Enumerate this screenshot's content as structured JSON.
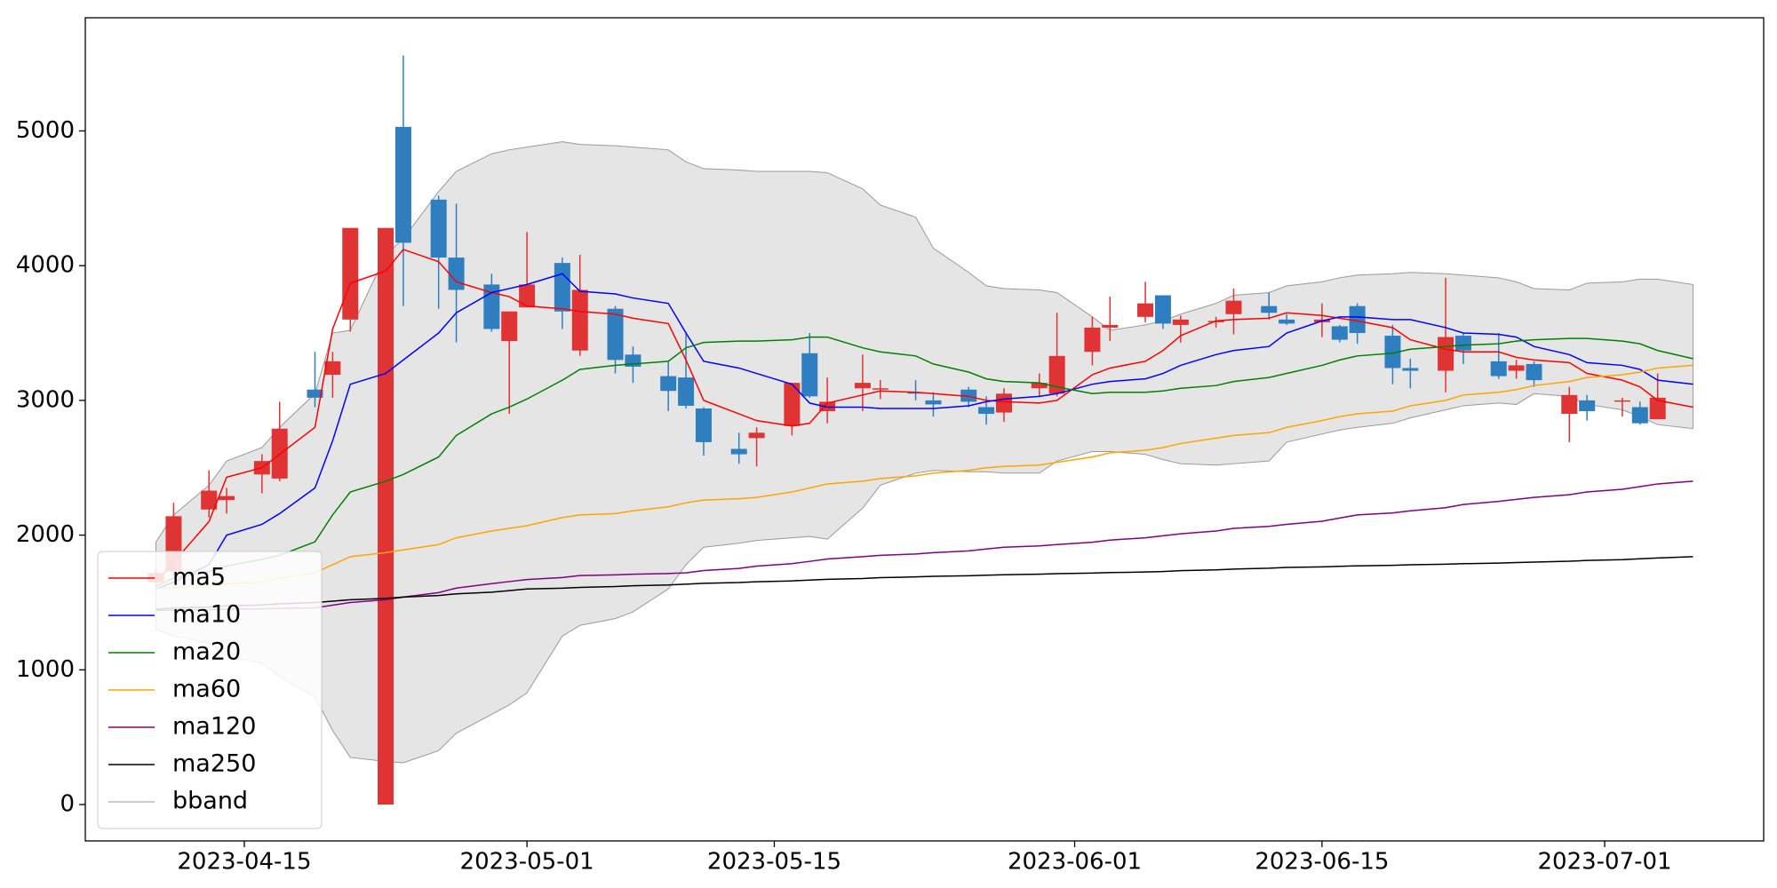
{
  "chart_data": {
    "type": "candlestick",
    "x": [
      "2023-04-10",
      "2023-04-11",
      "2023-04-13",
      "2023-04-14",
      "2023-04-16",
      "2023-04-17",
      "2023-04-19",
      "2023-04-20",
      "2023-04-21",
      "2023-04-23",
      "2023-04-24",
      "2023-04-26",
      "2023-04-27",
      "2023-04-29",
      "2023-04-30",
      "2023-05-01",
      "2023-05-03",
      "2023-05-04",
      "2023-05-06",
      "2023-05-07",
      "2023-05-09",
      "2023-05-10",
      "2023-05-11",
      "2023-05-13",
      "2023-05-14",
      "2023-05-16",
      "2023-05-17",
      "2023-05-18",
      "2023-05-20",
      "2023-05-21",
      "2023-05-23",
      "2023-05-24",
      "2023-05-26",
      "2023-05-27",
      "2023-05-28",
      "2023-05-30",
      "2023-05-31",
      "2023-06-02",
      "2023-06-03",
      "2023-06-05",
      "2023-06-06",
      "2023-06-07",
      "2023-06-09",
      "2023-06-10",
      "2023-06-12",
      "2023-06-13",
      "2023-06-15",
      "2023-06-16",
      "2023-06-17",
      "2023-06-19",
      "2023-06-20",
      "2023-06-22",
      "2023-06-23",
      "2023-06-25",
      "2023-06-26",
      "2023-06-27",
      "2023-06-29",
      "2023-06-30",
      "2023-07-02",
      "2023-07-03",
      "2023-07-04",
      "2023-07-06"
    ],
    "open": [
      1650,
      1730,
      2190,
      2260,
      2450,
      2420,
      3080,
      3190,
      3600,
      0,
      5030,
      4490,
      4060,
      3860,
      3440,
      3690,
      4020,
      3370,
      3680,
      3340,
      3180,
      3170,
      2940,
      2640,
      2720,
      2810,
      3350,
      2920,
      3090,
      3080,
      3060,
      3000,
      3080,
      2950,
      2910,
      3090,
      3050,
      3360,
      3540,
      3620,
      3780,
      3560,
      3580,
      3640,
      3700,
      3600,
      3580,
      3550,
      3700,
      3480,
      3240,
      3220,
      3480,
      3290,
      3220,
      3270,
      2900,
      3000,
      2990,
      2950,
      2860,
      null
    ],
    "high": [
      1750,
      2240,
      2480,
      2350,
      2600,
      2990,
      3360,
      3360,
      4280,
      4280,
      5560,
      4520,
      4460,
      3940,
      3660,
      4250,
      4060,
      4080,
      3700,
      3400,
      3290,
      3500,
      2950,
      2760,
      2800,
      3130,
      3500,
      3170,
      3340,
      3150,
      3150,
      3060,
      3100,
      3030,
      3090,
      3200,
      3650,
      3620,
      3770,
      3880,
      3780,
      3630,
      3620,
      3830,
      3800,
      3640,
      3720,
      3560,
      3720,
      3560,
      3310,
      3910,
      3500,
      3500,
      3300,
      3290,
      3100,
      3040,
      3020,
      2990,
      3200,
      null
    ],
    "low": [
      1600,
      1700,
      2130,
      2160,
      2310,
      2400,
      2950,
      3020,
      3510,
      0,
      3700,
      3680,
      3430,
      3510,
      2900,
      3690,
      3530,
      3330,
      3200,
      3130,
      2920,
      2940,
      2590,
      2530,
      2510,
      2740,
      3020,
      2830,
      2920,
      3010,
      3000,
      2880,
      2950,
      2820,
      2840,
      3030,
      3030,
      3260,
      3440,
      3580,
      3530,
      3430,
      3540,
      3490,
      3600,
      3560,
      3470,
      3430,
      3420,
      3120,
      3090,
      3060,
      3270,
      3160,
      3160,
      3100,
      2690,
      2850,
      2880,
      2820,
      2860,
      null
    ],
    "close": [
      1720,
      2140,
      2330,
      2290,
      2550,
      2790,
      3020,
      3290,
      4280,
      4280,
      4170,
      4060,
      3820,
      3530,
      3660,
      3860,
      3660,
      3820,
      3300,
      3250,
      3070,
      2960,
      2690,
      2600,
      2760,
      3130,
      3030,
      2990,
      3130,
      3090,
      3050,
      2970,
      2990,
      2900,
      3050,
      3130,
      3330,
      3540,
      3560,
      3720,
      3570,
      3600,
      3590,
      3740,
      3650,
      3570,
      3600,
      3450,
      3500,
      3240,
      3220,
      3470,
      3370,
      3180,
      3260,
      3150,
      3040,
      2920,
      3000,
      2830,
      3020,
      null
    ],
    "up_color": "#e03333",
    "down_color": "#2f7fc0",
    "series": [
      {
        "name": "ma5",
        "color": "#ff0000",
        "values": [
          1650,
          1800,
          2100,
          2430,
          2500,
          2600,
          2800,
          3530,
          3870,
          3960,
          4120,
          4030,
          3880,
          3800,
          3770,
          3700,
          3680,
          3660,
          3640,
          3610,
          3570,
          3300,
          3000,
          2900,
          2850,
          2810,
          2830,
          2980,
          3040,
          3070,
          3060,
          3050,
          3030,
          3000,
          2990,
          2980,
          3000,
          3190,
          3240,
          3290,
          3370,
          3480,
          3590,
          3600,
          3610,
          3650,
          3630,
          3610,
          3590,
          3540,
          3450,
          3380,
          3360,
          3360,
          3320,
          3300,
          3280,
          3200,
          3150,
          3100,
          3000,
          2950
        ]
      },
      {
        "name": "ma10",
        "color": "#0000ff",
        "values": [
          1600,
          1650,
          1780,
          2000,
          2080,
          2160,
          2350,
          2700,
          3120,
          3200,
          3300,
          3500,
          3650,
          3800,
          3830,
          3860,
          3940,
          3810,
          3790,
          3760,
          3720,
          3500,
          3290,
          3240,
          3200,
          3120,
          2980,
          2950,
          2950,
          2940,
          2940,
          2940,
          2960,
          2990,
          3010,
          3030,
          3050,
          3120,
          3140,
          3160,
          3200,
          3260,
          3340,
          3370,
          3400,
          3500,
          3590,
          3620,
          3620,
          3600,
          3600,
          3540,
          3500,
          3490,
          3470,
          3400,
          3340,
          3280,
          3260,
          3230,
          3150,
          3120
        ]
      },
      {
        "name": "ma20",
        "color": "#008000",
        "values": [
          1620,
          1680,
          1730,
          1770,
          1820,
          1850,
          1950,
          2150,
          2320,
          2400,
          2450,
          2580,
          2740,
          2900,
          2950,
          3010,
          3150,
          3230,
          3260,
          3270,
          3290,
          3390,
          3430,
          3440,
          3440,
          3450,
          3470,
          3470,
          3390,
          3360,
          3330,
          3270,
          3210,
          3160,
          3140,
          3130,
          3100,
          3050,
          3060,
          3060,
          3070,
          3090,
          3110,
          3140,
          3170,
          3200,
          3260,
          3300,
          3330,
          3350,
          3380,
          3400,
          3410,
          3420,
          3440,
          3450,
          3460,
          3460,
          3440,
          3420,
          3370,
          3310
        ]
      },
      {
        "name": "ma60",
        "color": "#ffa500",
        "values": [
          1600,
          1610,
          1620,
          1640,
          1650,
          1680,
          1720,
          1780,
          1840,
          1870,
          1890,
          1930,
          1980,
          2030,
          2050,
          2070,
          2130,
          2150,
          2160,
          2180,
          2210,
          2240,
          2260,
          2270,
          2280,
          2320,
          2350,
          2380,
          2400,
          2420,
          2440,
          2460,
          2480,
          2500,
          2510,
          2520,
          2540,
          2580,
          2610,
          2630,
          2650,
          2680,
          2720,
          2740,
          2760,
          2800,
          2850,
          2880,
          2900,
          2920,
          2960,
          3000,
          3040,
          3060,
          3080,
          3110,
          3140,
          3170,
          3190,
          3210,
          3240,
          3260
        ]
      },
      {
        "name": "ma120",
        "color": "#800080",
        "values": [
          1440,
          1443,
          1447,
          1450,
          1453,
          1457,
          1460,
          1480,
          1500,
          1520,
          1540,
          1573,
          1607,
          1640,
          1655,
          1670,
          1685,
          1700,
          1705,
          1710,
          1715,
          1720,
          1737,
          1753,
          1770,
          1788,
          1805,
          1823,
          1840,
          1850,
          1860,
          1870,
          1883,
          1897,
          1910,
          1920,
          1930,
          1947,
          1963,
          1980,
          1995,
          2010,
          2030,
          2050,
          2065,
          2080,
          2103,
          2127,
          2150,
          2165,
          2180,
          2203,
          2227,
          2250,
          2265,
          2280,
          2300,
          2320,
          2340,
          2360,
          2380,
          2400
        ]
      },
      {
        "name": "ma250",
        "color": "#000000",
        "values": [
          1450,
          1458,
          1466,
          1474,
          1482,
          1490,
          1500,
          1510,
          1520,
          1530,
          1540,
          1552,
          1564,
          1576,
          1588,
          1600,
          1606,
          1612,
          1618,
          1624,
          1630,
          1636,
          1642,
          1648,
          1654,
          1660,
          1666,
          1672,
          1678,
          1684,
          1690,
          1694,
          1698,
          1702,
          1706,
          1710,
          1714,
          1718,
          1722,
          1726,
          1730,
          1736,
          1742,
          1748,
          1754,
          1760,
          1764,
          1768,
          1772,
          1776,
          1780,
          1784,
          1788,
          1792,
          1796,
          1800,
          1806,
          1812,
          1818,
          1824,
          1830,
          1840
        ]
      }
    ],
    "band": {
      "name": "bband",
      "color": "#999999",
      "fill": "#e5e5e5",
      "upper": [
        1950,
        2150,
        2370,
        2550,
        2650,
        2800,
        3050,
        3500,
        3520,
        4080,
        4200,
        4550,
        4700,
        4830,
        4860,
        4880,
        4920,
        4900,
        4890,
        4880,
        4860,
        4770,
        4720,
        4710,
        4700,
        4700,
        4700,
        4690,
        4570,
        4450,
        4360,
        4130,
        3950,
        3850,
        3830,
        3820,
        3800,
        3620,
        3520,
        3560,
        3590,
        3640,
        3720,
        3780,
        3800,
        3850,
        3880,
        3910,
        3930,
        3940,
        3950,
        3940,
        3930,
        3910,
        3880,
        3830,
        3820,
        3870,
        3880,
        3900,
        3900,
        3860
      ],
      "lower": [
        1300,
        1250,
        1200,
        1100,
        1050,
        950,
        800,
        550,
        350,
        320,
        310,
        400,
        530,
        670,
        740,
        830,
        1250,
        1330,
        1380,
        1430,
        1600,
        1780,
        1910,
        1940,
        1960,
        1980,
        1990,
        1970,
        2200,
        2370,
        2460,
        2480,
        2470,
        2470,
        2460,
        2460,
        2550,
        2620,
        2620,
        2600,
        2560,
        2530,
        2520,
        2530,
        2550,
        2690,
        2750,
        2780,
        2800,
        2830,
        2870,
        2930,
        2960,
        2980,
        2970,
        3050,
        3030,
        2970,
        2930,
        2880,
        2820,
        2790
      ]
    },
    "xlim": [
      "2023-04-06",
      "2023-07-10"
    ],
    "xticks": [
      "2023-04-15",
      "2023-05-01",
      "2023-05-15",
      "2023-06-01",
      "2023-06-15",
      "2023-07-01"
    ],
    "ylim": [
      -270,
      5840
    ],
    "yticks": [
      0,
      1000,
      2000,
      3000,
      4000,
      5000
    ],
    "legend": "lower left"
  }
}
